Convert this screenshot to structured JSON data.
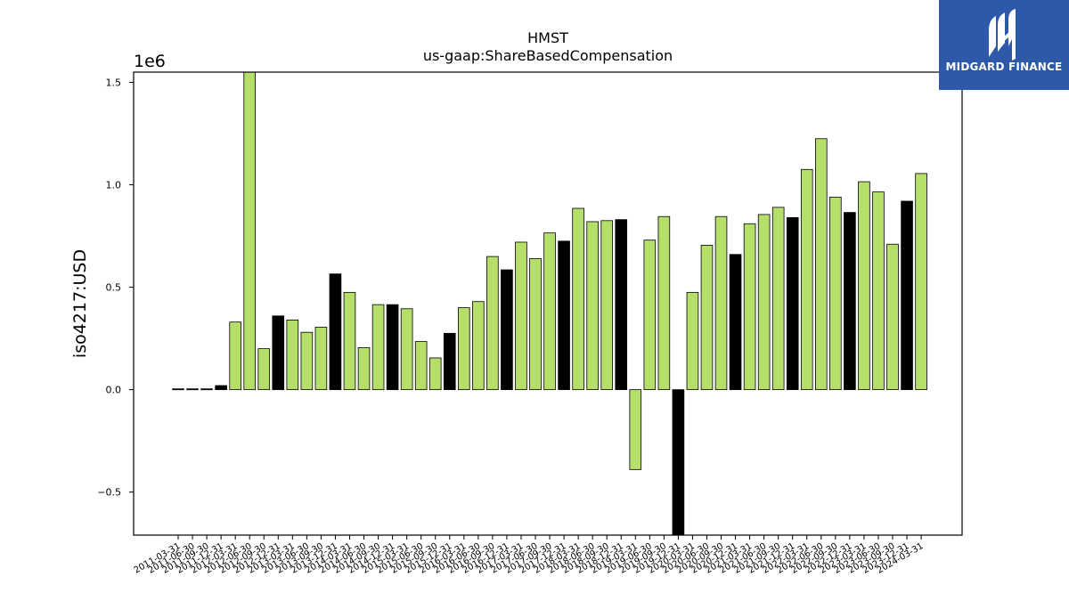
{
  "chart_data": {
    "type": "bar",
    "title": "HMST",
    "subtitle": "us-gaap:ShareBasedCompensation",
    "ylabel": "iso4217:USD",
    "y_exponent_label": "1e6",
    "ylim": [
      -0.71,
      1.55
    ],
    "yticks": [
      -0.5,
      0.0,
      0.5,
      1.0,
      1.5
    ],
    "ytick_labels": [
      "−0.5",
      "0.0",
      "0.5",
      "1.0",
      "1.5"
    ],
    "colors": {
      "q": "#b5de6a",
      "fy": "#000000"
    },
    "categories": [
      "2011-03-31",
      "2011-06-30",
      "2011-09-30",
      "2011-12-31",
      "2012-03-31",
      "2012-06-30",
      "2012-09-30",
      "2012-12-31",
      "2013-03-31",
      "2013-06-30",
      "2013-09-30",
      "2013-12-31",
      "2014-03-31",
      "2014-06-30",
      "2014-09-30",
      "2014-12-31",
      "2015-03-31",
      "2015-06-30",
      "2015-09-30",
      "2015-12-31",
      "2016-03-31",
      "2016-06-30",
      "2016-09-30",
      "2016-12-31",
      "2017-03-31",
      "2017-06-30",
      "2017-09-30",
      "2017-12-31",
      "2018-03-31",
      "2018-06-30",
      "2018-09-30",
      "2018-12-31",
      "2019-03-31",
      "2019-06-30",
      "2019-09-30",
      "2019-12-31",
      "2020-03-31",
      "2020-06-30",
      "2020-09-30",
      "2020-12-31",
      "2021-03-31",
      "2021-06-30",
      "2021-09-30",
      "2021-12-31",
      "2022-03-31",
      "2022-06-30",
      "2022-09-30",
      "2022-12-31",
      "2023-03-31",
      "2023-06-30",
      "2023-09-30",
      "2023-12-31",
      "2024-03-31"
    ],
    "values": [
      0.004,
      0.004,
      0.004,
      0.02,
      0.33,
      1.55,
      0.2,
      0.36,
      0.34,
      0.28,
      0.305,
      0.565,
      0.475,
      0.205,
      0.415,
      0.415,
      0.395,
      0.235,
      0.155,
      0.275,
      0.4,
      0.43,
      0.65,
      0.585,
      0.72,
      0.64,
      0.765,
      0.725,
      0.885,
      0.82,
      0.825,
      0.83,
      -0.39,
      0.73,
      0.845,
      -0.71,
      0.475,
      0.705,
      0.845,
      0.66,
      0.81,
      0.855,
      0.89,
      0.84,
      1.075,
      1.225,
      0.94,
      0.865,
      1.015,
      0.965,
      0.71,
      0.92,
      1.055
    ],
    "period_type": [
      "fy",
      "fy",
      "fy",
      "fy",
      "q",
      "q",
      "q",
      "fy",
      "q",
      "q",
      "q",
      "fy",
      "q",
      "q",
      "q",
      "fy",
      "q",
      "q",
      "q",
      "fy",
      "q",
      "q",
      "q",
      "fy",
      "q",
      "q",
      "q",
      "fy",
      "q",
      "q",
      "q",
      "fy",
      "q",
      "q",
      "q",
      "fy",
      "q",
      "q",
      "q",
      "fy",
      "q",
      "q",
      "q",
      "fy",
      "q",
      "q",
      "q",
      "fy",
      "q",
      "q",
      "q",
      "fy",
      "q"
    ],
    "grid": false
  },
  "logo": {
    "text": "MIDGARD FINANCE",
    "bg": "#2e59a8"
  }
}
